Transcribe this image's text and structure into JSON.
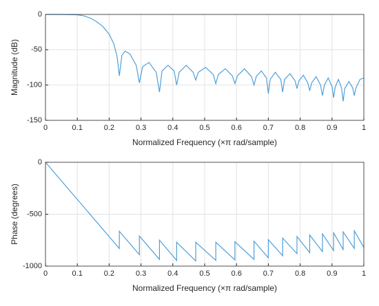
{
  "chart_data": [
    {
      "type": "line",
      "ylabel": "Magnitude (dB)",
      "xlabel": "Normalized Frequency (×π rad/sample)",
      "xlim": [
        0,
        1
      ],
      "xticks": [
        0,
        0.1,
        0.2,
        0.3,
        0.4,
        0.5,
        0.6,
        0.7,
        0.8,
        0.9,
        1
      ],
      "ylim": [
        -150,
        0
      ],
      "yticks": [
        0,
        -50,
        -100,
        -150
      ],
      "grid": true,
      "series": [
        {
          "color": "#4f9fd9",
          "x": [
            0,
            0.05,
            0.1,
            0.12,
            0.14,
            0.16,
            0.18,
            0.2,
            0.215,
            0.225,
            0.232,
            0.24,
            0.25,
            0.265,
            0.285,
            0.295,
            0.305,
            0.325,
            0.348,
            0.358,
            0.366,
            0.385,
            0.404,
            0.412,
            0.42,
            0.442,
            0.464,
            0.472,
            0.48,
            0.503,
            0.527,
            0.535,
            0.543,
            0.565,
            0.587,
            0.595,
            0.603,
            0.625,
            0.647,
            0.655,
            0.662,
            0.678,
            0.694,
            0.7,
            0.706,
            0.722,
            0.739,
            0.745,
            0.751,
            0.768,
            0.784,
            0.79,
            0.796,
            0.81,
            0.824,
            0.83,
            0.836,
            0.85,
            0.864,
            0.87,
            0.876,
            0.888,
            0.9,
            0.905,
            0.91,
            0.92,
            0.93,
            0.935,
            0.94,
            0.953,
            0.965,
            0.97,
            0.975,
            0.988,
            1
          ],
          "values": [
            0,
            0,
            -0.5,
            -2,
            -5,
            -10,
            -17,
            -28,
            -42,
            -60,
            -87,
            -58,
            -52,
            -56,
            -72,
            -97,
            -74,
            -68,
            -82,
            -110,
            -80,
            -72,
            -80,
            -100,
            -82,
            -72,
            -82,
            -93,
            -82,
            -75,
            -85,
            -98,
            -85,
            -77,
            -87,
            -98,
            -87,
            -77,
            -88,
            -100,
            -88,
            -80,
            -90,
            -112,
            -92,
            -82,
            -92,
            -110,
            -92,
            -84,
            -94,
            -105,
            -94,
            -86,
            -97,
            -108,
            -97,
            -88,
            -100,
            -115,
            -100,
            -90,
            -102,
            -118,
            -103,
            -92,
            -104,
            -123,
            -105,
            -95,
            -104,
            -115,
            -104,
            -92,
            -90
          ]
        }
      ]
    },
    {
      "type": "line",
      "ylabel": "Phase (degrees)",
      "xlabel": "Normalized Frequency (×π rad/sample)",
      "xlim": [
        0,
        1
      ],
      "xticks": [
        0,
        0.1,
        0.2,
        0.3,
        0.4,
        0.5,
        0.6,
        0.7,
        0.8,
        0.9,
        1
      ],
      "ylim": [
        -1000,
        0
      ],
      "yticks": [
        0,
        -500,
        -1000
      ],
      "grid": true,
      "series": [
        {
          "color": "#4f9fd9",
          "x": [
            0,
            0.232,
            0.232,
            0.295,
            0.295,
            0.358,
            0.358,
            0.412,
            0.412,
            0.472,
            0.472,
            0.535,
            0.535,
            0.595,
            0.595,
            0.655,
            0.655,
            0.7,
            0.7,
            0.745,
            0.745,
            0.79,
            0.79,
            0.83,
            0.83,
            0.87,
            0.87,
            0.905,
            0.905,
            0.935,
            0.935,
            0.97,
            0.97,
            1
          ],
          "values": [
            0,
            -830,
            -665,
            -890,
            -710,
            -935,
            -750,
            -945,
            -770,
            -950,
            -770,
            -945,
            -770,
            -940,
            -765,
            -935,
            -760,
            -920,
            -745,
            -900,
            -730,
            -880,
            -715,
            -870,
            -700,
            -860,
            -690,
            -850,
            -680,
            -840,
            -670,
            -830,
            -660,
            -820
          ]
        }
      ]
    }
  ]
}
